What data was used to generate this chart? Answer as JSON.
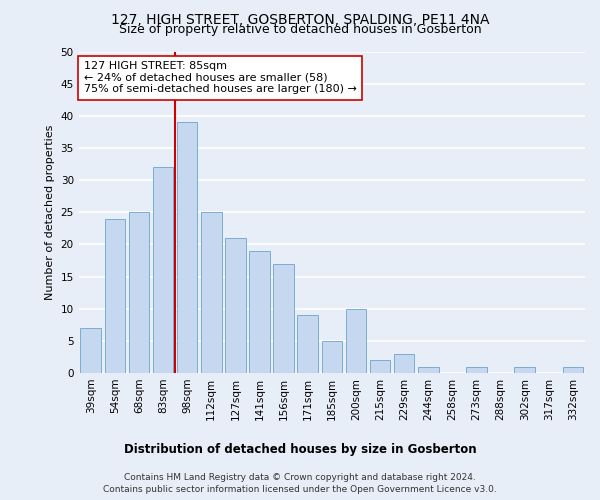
{
  "title": "127, HIGH STREET, GOSBERTON, SPALDING, PE11 4NA",
  "subtitle": "Size of property relative to detached houses in Gosberton",
  "xlabel": "Distribution of detached houses by size in Gosberton",
  "ylabel": "Number of detached properties",
  "categories": [
    "39sqm",
    "54sqm",
    "68sqm",
    "83sqm",
    "98sqm",
    "112sqm",
    "127sqm",
    "141sqm",
    "156sqm",
    "171sqm",
    "185sqm",
    "200sqm",
    "215sqm",
    "229sqm",
    "244sqm",
    "258sqm",
    "273sqm",
    "288sqm",
    "302sqm",
    "317sqm",
    "332sqm"
  ],
  "values": [
    7,
    24,
    25,
    32,
    39,
    25,
    21,
    19,
    17,
    9,
    5,
    10,
    2,
    3,
    1,
    0,
    1,
    0,
    1,
    0,
    1
  ],
  "bar_color": "#c5d8ef",
  "bar_edge_color": "#7aadd4",
  "vline_x": 3.5,
  "vline_color": "#cc0000",
  "annotation_text": "127 HIGH STREET: 85sqm\n← 24% of detached houses are smaller (58)\n75% of semi-detached houses are larger (180) →",
  "annotation_box_color": "white",
  "annotation_box_edge_color": "#cc0000",
  "ylim": [
    0,
    50
  ],
  "yticks": [
    0,
    5,
    10,
    15,
    20,
    25,
    30,
    35,
    40,
    45,
    50
  ],
  "footer_line1": "Contains HM Land Registry data © Crown copyright and database right 2024.",
  "footer_line2": "Contains public sector information licensed under the Open Government Licence v3.0.",
  "bg_color": "#e8eef7",
  "grid_color": "white",
  "title_fontsize": 10,
  "subtitle_fontsize": 9,
  "xlabel_fontsize": 8.5,
  "ylabel_fontsize": 8,
  "tick_fontsize": 7.5,
  "annotation_fontsize": 8,
  "footer_fontsize": 6.5
}
